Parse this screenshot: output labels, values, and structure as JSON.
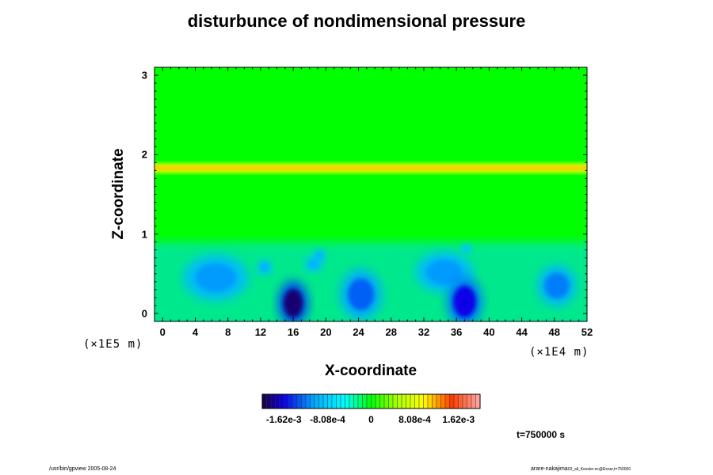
{
  "chart_data": {
    "type": "heatmap",
    "title": "disturbunce of nondimensional pressure",
    "xlabel": "X-coordinate",
    "ylabel": "Z-coordinate",
    "x_unit": "(×1E4 m)",
    "z_unit": "(×1E5 m)",
    "xlim": [
      -1,
      52
    ],
    "ylim": [
      -0.1,
      3.1
    ],
    "x_ticks": [
      0,
      4,
      8,
      12,
      16,
      20,
      24,
      28,
      32,
      36,
      40,
      44,
      48,
      52
    ],
    "x_tick_labels": [
      "0",
      "4",
      "8",
      "12",
      "16",
      "20",
      "24",
      "28",
      "32",
      "36",
      "40",
      "44",
      "48",
      "52"
    ],
    "y_ticks": [
      0,
      1,
      2,
      3
    ],
    "y_tick_labels": [
      "0",
      "1",
      "2",
      "3"
    ],
    "value_range": [
      -0.00202,
      0.00202
    ],
    "background_value": 0.0,
    "features": [
      {
        "kind": "band",
        "z_center": 1.83,
        "z_halfwidth": 0.06,
        "value": 0.00085
      },
      {
        "kind": "band",
        "z_center": 1.83,
        "z_halfwidth": 0.025,
        "value": 0.00115
      },
      {
        "kind": "lower_layer",
        "z_top": 0.9,
        "value": -0.00075
      },
      {
        "kind": "blob",
        "x": 6.5,
        "z": 0.45,
        "rx": 2.5,
        "rz": 0.18,
        "value": -0.0011
      },
      {
        "kind": "blob",
        "x": 12.5,
        "z": 0.58,
        "rx": 0.6,
        "rz": 0.06,
        "value": -0.001
      },
      {
        "kind": "blob",
        "x": 16.0,
        "z": 0.13,
        "rx": 1.2,
        "rz": 0.18,
        "value": -0.0019
      },
      {
        "kind": "blob",
        "x": 18.5,
        "z": 0.62,
        "rx": 0.7,
        "rz": 0.06,
        "value": -0.001
      },
      {
        "kind": "blob",
        "x": 19.2,
        "z": 0.73,
        "rx": 0.5,
        "rz": 0.05,
        "value": -0.001
      },
      {
        "kind": "blob",
        "x": 24.3,
        "z": 0.24,
        "rx": 1.6,
        "rz": 0.2,
        "value": -0.0013
      },
      {
        "kind": "blob",
        "x": 34.5,
        "z": 0.52,
        "rx": 2.2,
        "rz": 0.16,
        "value": -0.0011
      },
      {
        "kind": "blob",
        "x": 37.0,
        "z": 0.15,
        "rx": 1.4,
        "rz": 0.2,
        "value": -0.0016
      },
      {
        "kind": "blob",
        "x": 37.2,
        "z": 0.82,
        "rx": 0.4,
        "rz": 0.04,
        "value": -0.0009
      },
      {
        "kind": "blob",
        "x": 48.3,
        "z": 0.35,
        "rx": 1.5,
        "rz": 0.16,
        "value": -0.0012
      }
    ],
    "colorbar": {
      "n_levels": 50,
      "tick_labels": [
        "-1.62e-3",
        "-8.08e-4",
        "0",
        "8.08e-4",
        "1.62e-3"
      ],
      "tick_values": [
        -0.00162,
        -0.000808,
        0,
        0.000808,
        0.00162
      ]
    },
    "annotation": "t=750000 s"
  },
  "footer": {
    "left": "/usr/bin/gpview 2005-08-24",
    "right_main": "arare-nakajima",
    "right_small": "03_all_Kessler.nc@Exner,t=750000"
  }
}
